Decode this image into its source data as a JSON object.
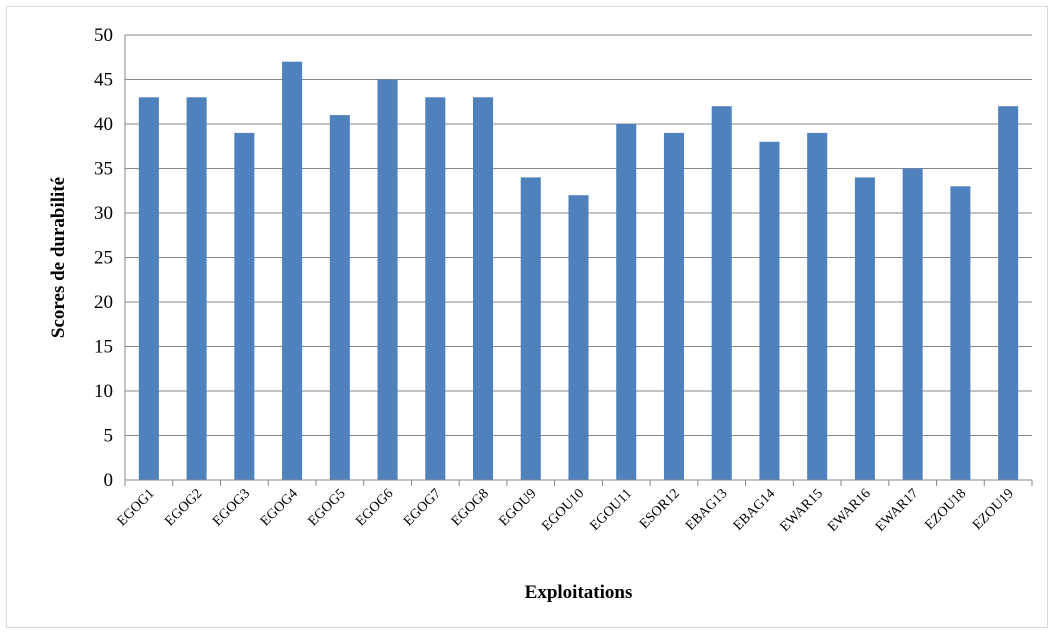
{
  "chart_data": {
    "type": "bar",
    "title": "",
    "xlabel": "Exploitations",
    "ylabel": "Scores de durabilité",
    "ylim": [
      0,
      50
    ],
    "yticks": [
      0,
      5,
      10,
      15,
      20,
      25,
      30,
      35,
      40,
      45,
      50
    ],
    "grid": "horizontal",
    "legend": "none",
    "bar_color": "#4f81bd",
    "categories": [
      "EGOG1",
      "EGOG2",
      "EGOG3",
      "EGOG4",
      "EGOG5",
      "EGOG6",
      "EGOG7",
      "EGOG8",
      "EGOU9",
      "EGOU10",
      "EGOU11",
      "ESOR12",
      "EBAG13",
      "EBAG14",
      "EWAR15",
      "EWAR16",
      "EWAR17",
      "EZOU18",
      "EZOU19"
    ],
    "values": [
      43,
      43,
      39,
      47,
      41,
      45,
      43,
      43,
      34,
      32,
      40,
      39,
      42,
      38,
      39,
      34,
      35,
      33,
      42
    ]
  }
}
